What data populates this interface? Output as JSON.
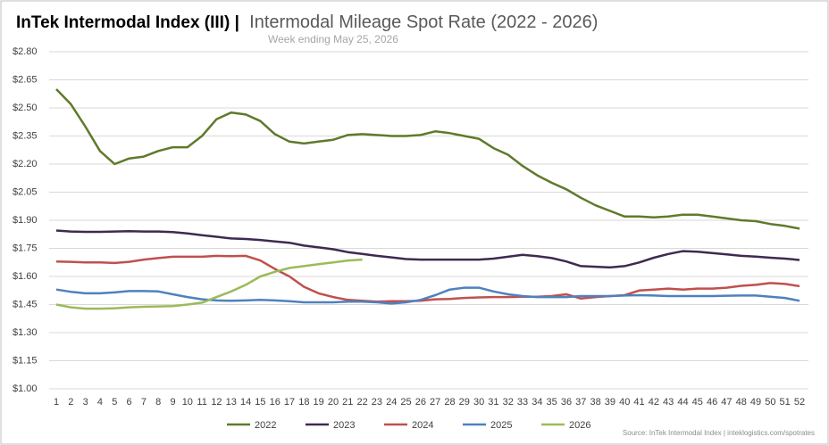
{
  "chart_data": {
    "type": "line",
    "title_prefix": "InTek Intermodal Index (III) |",
    "title": "Intermodal Mileage Spot Rate (2022 - 2026)",
    "subtitle": "Week ending May 25, 2026",
    "source": "Source: InTek Intermodal Index | inteklogistics.com/spotrates",
    "categories": [
      "1",
      "2",
      "3",
      "4",
      "5",
      "6",
      "7",
      "8",
      "9",
      "10",
      "11",
      "12",
      "13",
      "14",
      "15",
      "16",
      "17",
      "18",
      "19",
      "20",
      "21",
      "22",
      "23",
      "24",
      "25",
      "26",
      "27",
      "28",
      "29",
      "30",
      "31",
      "32",
      "33",
      "34",
      "35",
      "36",
      "37",
      "38",
      "39",
      "40",
      "41",
      "42",
      "43",
      "44",
      "45",
      "46",
      "47",
      "48",
      "49",
      "50",
      "51",
      "52"
    ],
    "ylim": [
      1.0,
      2.8
    ],
    "yticks": [
      {
        "value": 1.0,
        "label": "$1.00"
      },
      {
        "value": 1.15,
        "label": "$1.15"
      },
      {
        "value": 1.3,
        "label": "$1.30"
      },
      {
        "value": 1.45,
        "label": "$1.45"
      },
      {
        "value": 1.6,
        "label": "$1.60"
      },
      {
        "value": 1.75,
        "label": "$1.75"
      },
      {
        "value": 1.9,
        "label": "$1.90"
      },
      {
        "value": 2.05,
        "label": "$2.05"
      },
      {
        "value": 2.2,
        "label": "$2.20"
      },
      {
        "value": 2.35,
        "label": "$2.35"
      },
      {
        "value": 2.5,
        "label": "$2.50"
      },
      {
        "value": 2.65,
        "label": "$2.65"
      },
      {
        "value": 2.8,
        "label": "$2.80"
      }
    ],
    "grid": true,
    "legend": "bottom",
    "series": [
      {
        "name": "2022",
        "color": "#5f7a2b",
        "values": [
          2.6,
          2.52,
          2.4,
          2.27,
          2.2,
          2.23,
          2.24,
          2.27,
          2.29,
          2.29,
          2.35,
          2.44,
          2.475,
          2.465,
          2.43,
          2.36,
          2.32,
          2.31,
          2.32,
          2.33,
          2.355,
          2.36,
          2.355,
          2.35,
          2.35,
          2.355,
          2.375,
          2.365,
          2.35,
          2.335,
          2.285,
          2.25,
          2.19,
          2.14,
          2.1,
          2.065,
          2.02,
          1.98,
          1.95,
          1.92,
          1.92,
          1.915,
          1.92,
          1.93,
          1.93,
          1.92,
          1.91,
          1.9,
          1.895,
          1.88,
          1.87,
          1.855
        ]
      },
      {
        "name": "2023",
        "color": "#3f2a4f",
        "values": [
          1.845,
          1.84,
          1.838,
          1.838,
          1.84,
          1.842,
          1.84,
          1.84,
          1.837,
          1.83,
          1.82,
          1.812,
          1.803,
          1.8,
          1.795,
          1.787,
          1.78,
          1.765,
          1.755,
          1.745,
          1.73,
          1.72,
          1.71,
          1.702,
          1.693,
          1.69,
          1.69,
          1.69,
          1.69,
          1.69,
          1.695,
          1.705,
          1.715,
          1.708,
          1.698,
          1.68,
          1.655,
          1.652,
          1.648,
          1.655,
          1.675,
          1.7,
          1.72,
          1.735,
          1.732,
          1.725,
          1.718,
          1.71,
          1.706,
          1.7,
          1.695,
          1.688
        ]
      },
      {
        "name": "2024",
        "color": "#c0504d",
        "values": [
          1.68,
          1.678,
          1.675,
          1.675,
          1.672,
          1.678,
          1.69,
          1.698,
          1.705,
          1.705,
          1.705,
          1.71,
          1.708,
          1.71,
          1.685,
          1.64,
          1.6,
          1.545,
          1.51,
          1.49,
          1.475,
          1.47,
          1.465,
          1.468,
          1.468,
          1.47,
          1.478,
          1.48,
          1.485,
          1.488,
          1.49,
          1.49,
          1.492,
          1.492,
          1.495,
          1.505,
          1.482,
          1.49,
          1.495,
          1.5,
          1.525,
          1.53,
          1.535,
          1.53,
          1.535,
          1.535,
          1.54,
          1.55,
          1.555,
          1.565,
          1.56,
          1.548
        ]
      },
      {
        "name": "2025",
        "color": "#4f81bd",
        "values": [
          1.53,
          1.518,
          1.51,
          1.51,
          1.515,
          1.522,
          1.522,
          1.52,
          1.505,
          1.49,
          1.478,
          1.472,
          1.47,
          1.472,
          1.475,
          1.472,
          1.468,
          1.462,
          1.462,
          1.462,
          1.465,
          1.465,
          1.462,
          1.455,
          1.462,
          1.475,
          1.5,
          1.53,
          1.54,
          1.54,
          1.52,
          1.505,
          1.495,
          1.49,
          1.49,
          1.49,
          1.495,
          1.495,
          1.495,
          1.498,
          1.5,
          1.498,
          1.495,
          1.495,
          1.495,
          1.495,
          1.497,
          1.498,
          1.498,
          1.492,
          1.485,
          1.47
        ]
      },
      {
        "name": "2026",
        "color": "#9bbb59",
        "values": [
          1.45,
          1.435,
          1.428,
          1.428,
          1.43,
          1.435,
          1.438,
          1.44,
          1.442,
          1.45,
          1.46,
          1.49,
          1.52,
          1.555,
          1.6,
          1.625,
          1.645,
          1.655,
          1.665,
          1.675,
          1.685,
          1.69,
          null,
          null,
          null,
          null,
          null,
          null,
          null,
          null,
          null,
          null,
          null,
          null,
          null,
          null,
          null,
          null,
          null,
          null,
          null,
          null,
          null,
          null,
          null,
          null,
          null,
          null,
          null,
          null,
          null,
          null
        ]
      }
    ]
  }
}
